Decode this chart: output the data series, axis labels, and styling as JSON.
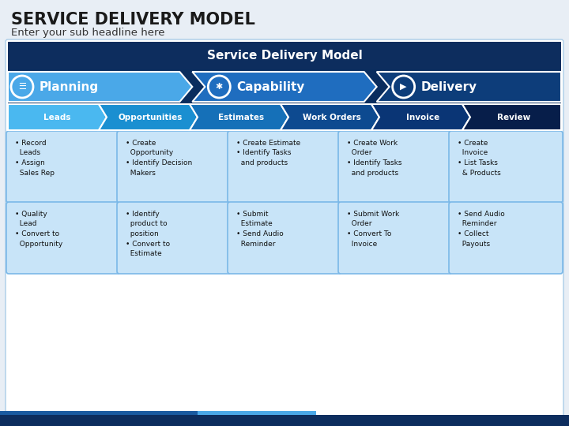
{
  "title": "SERVICE DELIVERY MODEL",
  "subtitle": "Enter your sub headline here",
  "banner_title": "Service Delivery Model",
  "bg_color": "#e8eef5",
  "title_color": "#1a1a1a",
  "subtitle_color": "#333333",
  "header_bar_color": "#0d2d5e",
  "phase_colors": [
    "#4aa8e8",
    "#1f6dbf",
    "#0d3d7a"
  ],
  "phase_labels": [
    "Planning",
    "Capability",
    "Delivery"
  ],
  "step_colors": [
    "#4ab8f0",
    "#1a8fd1",
    "#1570b8",
    "#0d4a90",
    "#0a3575",
    "#071e4a"
  ],
  "step_labels": [
    "Leads",
    "Opportunities",
    "Estimates",
    "Work Orders",
    "Invoice",
    "Review"
  ],
  "cell_bg": "#c8e4f8",
  "cell_border": "#7ab8e8",
  "row1_data": [
    "• Record\n  Leads\n• Assign\n  Sales Rep",
    "• Create\n  Opportunity\n• Identify Decision\n  Makers",
    "• Create Estimate\n• Identify Tasks\n  and products",
    "• Create Work\n  Order\n• Identify Tasks\n  and products",
    "• Create\n  Invoice\n• List Tasks\n  & Products"
  ],
  "row2_data": [
    "• Quality\n  Lead\n• Convert to\n  Opportunity",
    "• Identify\n  product to\n  position\n• Convert to\n  Estimate",
    "• Submit\n  Estimate\n• Send Audio\n  Reminder",
    "• Submit Work\n  Order\n• Convert To\n  Invoice",
    "• Send Audio\n  Reminder\n• Collect\n  Payouts"
  ],
  "footer_dark": "#0d2d5e",
  "footer_mid": "#1a5aa0",
  "footer_light": "#4aa8e8"
}
